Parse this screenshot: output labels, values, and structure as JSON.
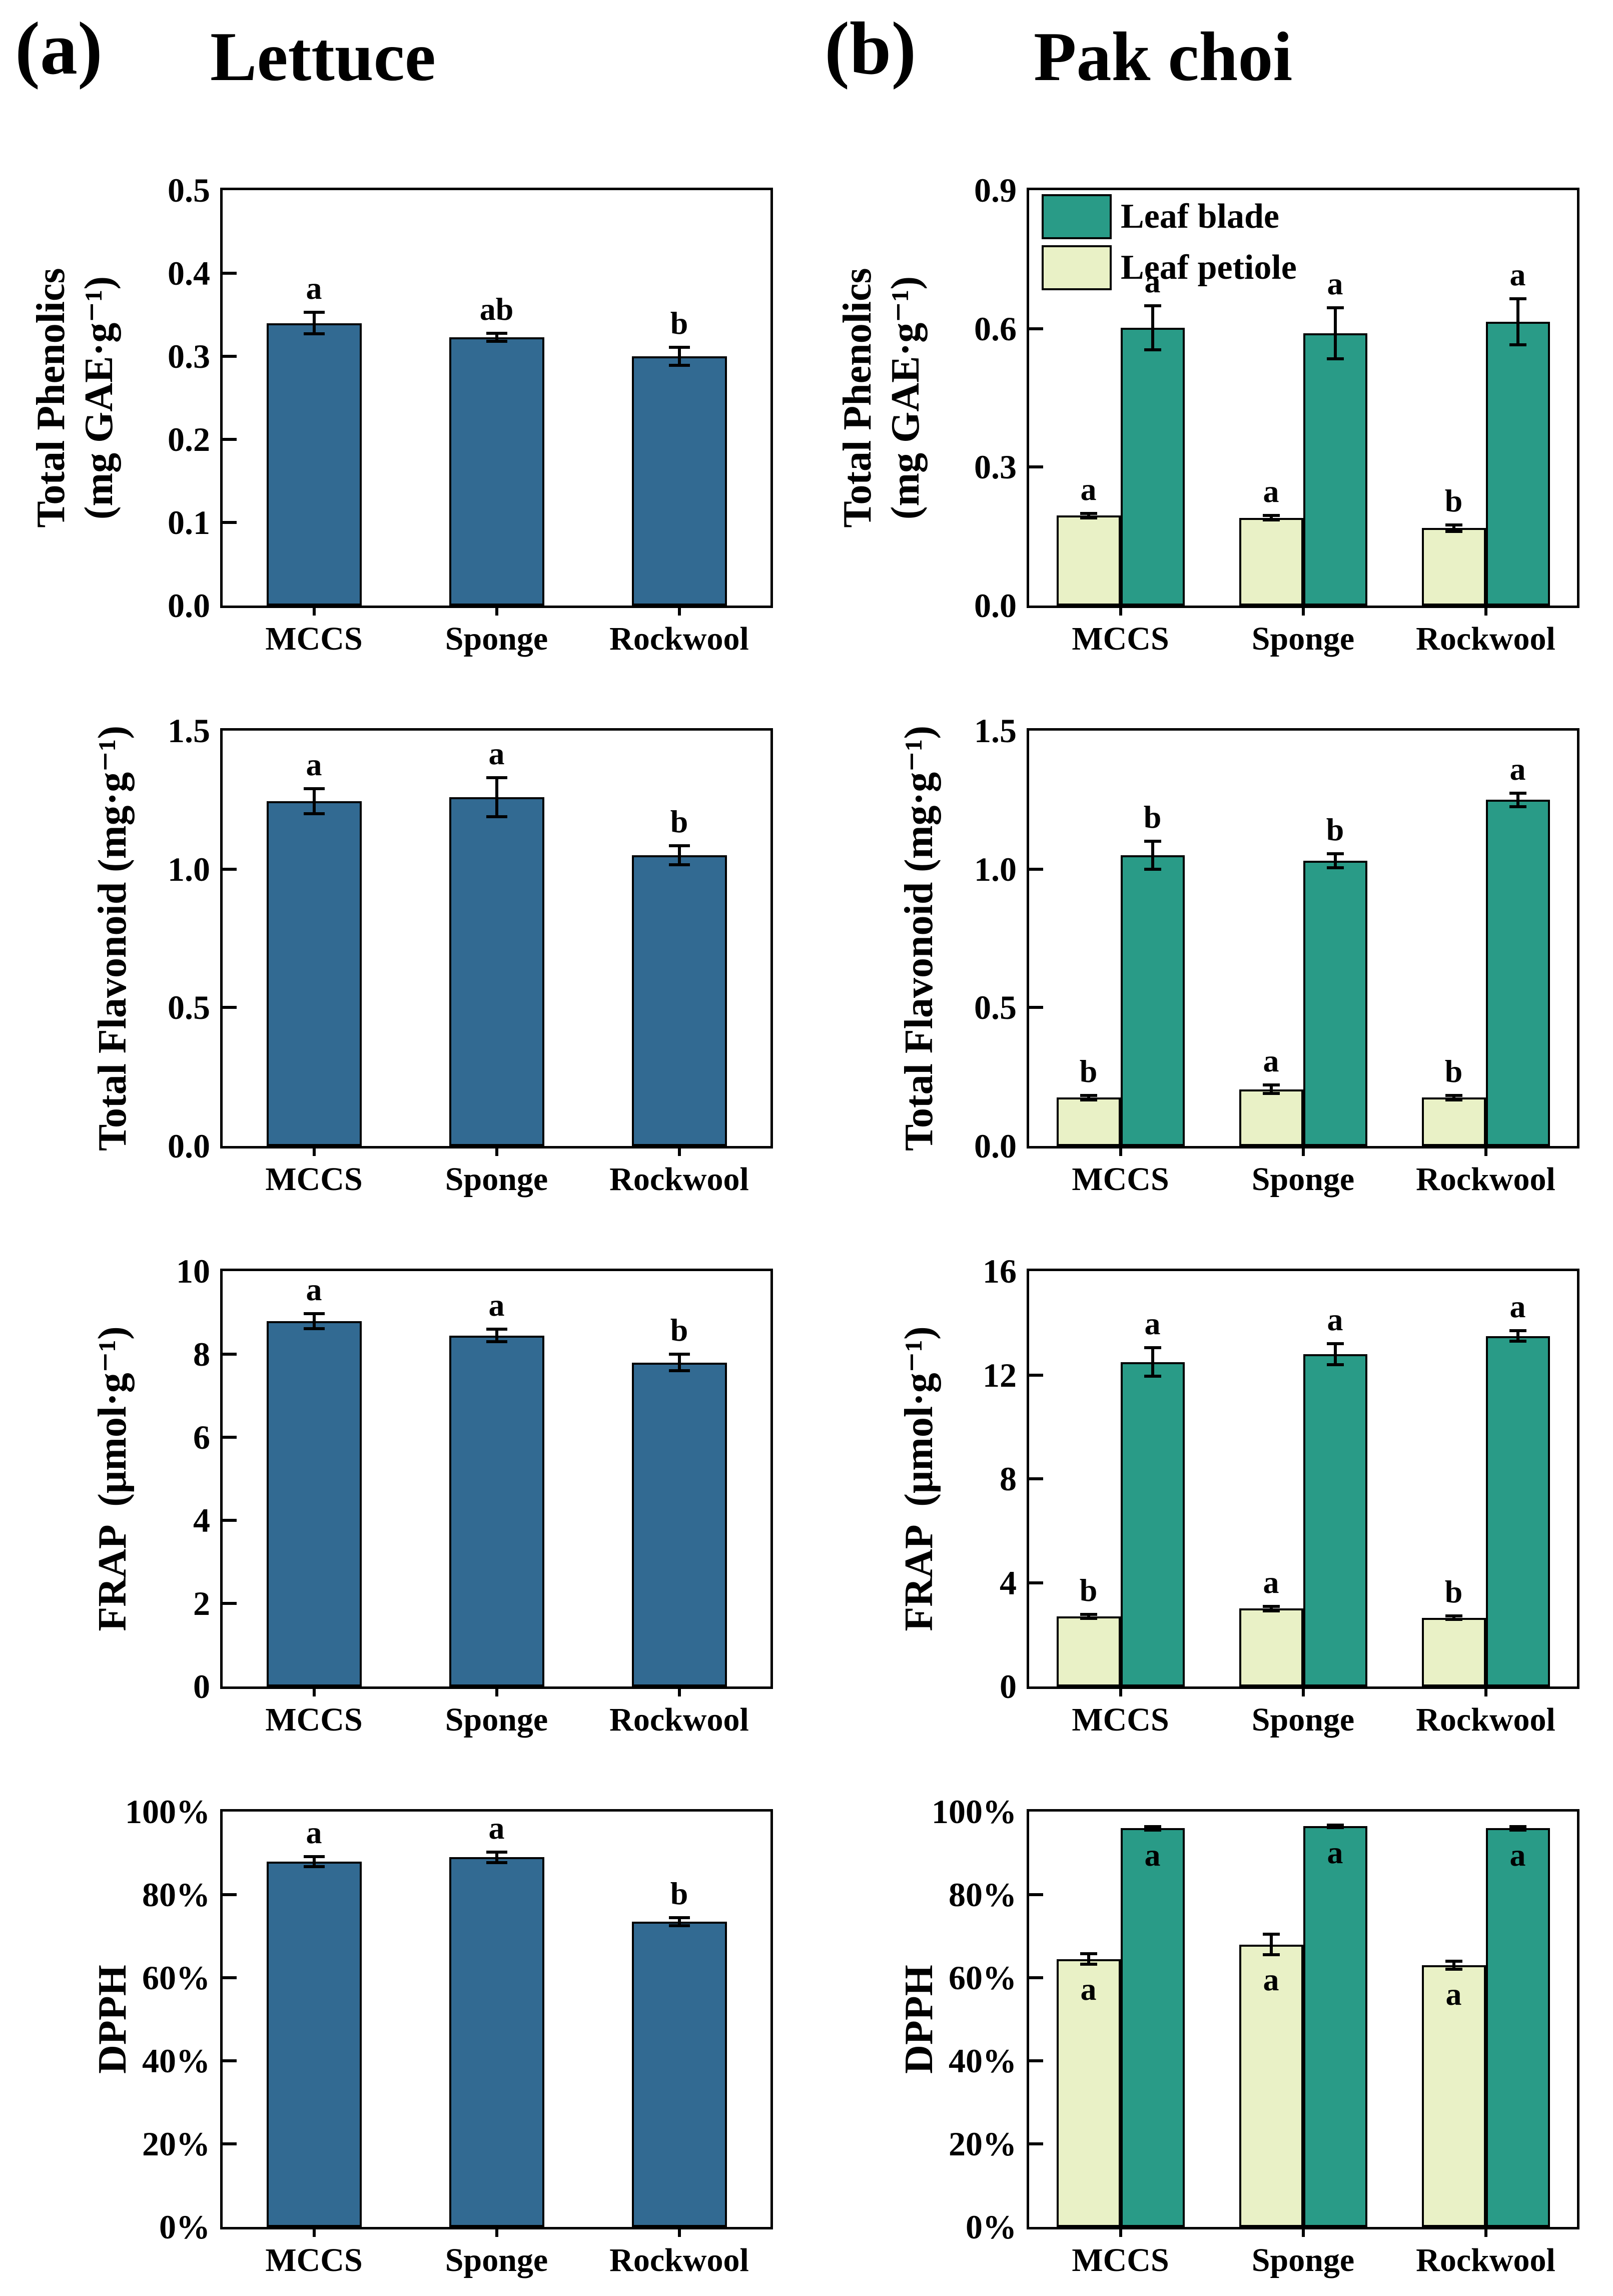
{
  "panels": {
    "a": {
      "label": "(a)",
      "title": "Lettuce"
    },
    "b": {
      "label": "(b)",
      "title": "Pak choi"
    }
  },
  "legend": {
    "position": "top-left-inside",
    "items": [
      {
        "name": "Leaf blade",
        "color": "#299B87"
      },
      {
        "name": "Leaf petiole",
        "color": "#E9F1C6"
      }
    ]
  },
  "colors": {
    "lettuce_bar": "#326A92",
    "leaf_blade": "#299B87",
    "leaf_petiole": "#E9F1C6",
    "axis": "#000000",
    "background": "#FFFFFF"
  },
  "chart_data": [
    {
      "id": "lettuce-total-phenolics",
      "panel": "a",
      "type": "bar",
      "ylabel_lines": [
        "Total Phenolics",
        "(mg GAE·g⁻¹)"
      ],
      "ylim": [
        0,
        0.5
      ],
      "grid": false,
      "legend": false,
      "letters_inside": false,
      "yticks": [
        {
          "v": 0.0,
          "label": "0.0"
        },
        {
          "v": 0.1,
          "label": "0.1"
        },
        {
          "v": 0.2,
          "label": "0.2"
        },
        {
          "v": 0.3,
          "label": "0.3"
        },
        {
          "v": 0.4,
          "label": "0.4"
        },
        {
          "v": 0.5,
          "label": "0.5"
        }
      ],
      "categories": [
        "MCCS",
        "Sponge",
        "Rockwool"
      ],
      "series": [
        {
          "name": "Lettuce",
          "color": "#326A92",
          "values": [
            0.34,
            0.323,
            0.3
          ],
          "errors": [
            0.013,
            0.005,
            0.011
          ],
          "letters": [
            "a",
            "ab",
            "b"
          ]
        }
      ]
    },
    {
      "id": "pakchoi-total-phenolics",
      "panel": "b",
      "type": "bar",
      "ylabel_lines": [
        "Total Phenolics",
        "(mg GAE·g⁻¹)"
      ],
      "ylim": [
        0,
        0.9
      ],
      "grid": false,
      "legend": true,
      "letters_inside": false,
      "yticks": [
        {
          "v": 0.0,
          "label": "0.0"
        },
        {
          "v": 0.3,
          "label": "0.3"
        },
        {
          "v": 0.6,
          "label": "0.6"
        },
        {
          "v": 0.9,
          "label": "0.9"
        }
      ],
      "categories": [
        "MCCS",
        "Sponge",
        "Rockwool"
      ],
      "series": [
        {
          "name": "Leaf petiole",
          "color": "#E9F1C6",
          "values": [
            0.195,
            0.19,
            0.168
          ],
          "errors": [
            0.005,
            0.005,
            0.007
          ],
          "letters": [
            "a",
            "a",
            "b"
          ]
        },
        {
          "name": "Leaf blade",
          "color": "#299B87",
          "values": [
            0.602,
            0.59,
            0.615
          ],
          "errors": [
            0.048,
            0.055,
            0.05
          ],
          "letters": [
            "a",
            "a",
            "a"
          ]
        }
      ]
    },
    {
      "id": "lettuce-total-flavonoid",
      "panel": "a",
      "type": "bar",
      "ylabel_lines": [
        "Total Flavonoid (mg·g⁻¹)"
      ],
      "ylim": [
        0,
        1.5
      ],
      "grid": false,
      "legend": false,
      "letters_inside": false,
      "yticks": [
        {
          "v": 0.0,
          "label": "0.0"
        },
        {
          "v": 0.5,
          "label": "0.5"
        },
        {
          "v": 1.0,
          "label": "1.0"
        },
        {
          "v": 1.5,
          "label": "1.5"
        }
      ],
      "categories": [
        "MCCS",
        "Sponge",
        "Rockwool"
      ],
      "series": [
        {
          "name": "Lettuce",
          "color": "#326A92",
          "values": [
            1.245,
            1.26,
            1.05
          ],
          "errors": [
            0.045,
            0.07,
            0.035
          ],
          "letters": [
            "a",
            "a",
            "b"
          ]
        }
      ]
    },
    {
      "id": "pakchoi-total-flavonoid",
      "panel": "b",
      "type": "bar",
      "ylabel_lines": [
        "Total Flavonoid (mg·g⁻¹)"
      ],
      "ylim": [
        0,
        1.5
      ],
      "grid": false,
      "legend": false,
      "letters_inside": false,
      "yticks": [
        {
          "v": 0.0,
          "label": "0.0"
        },
        {
          "v": 0.5,
          "label": "0.5"
        },
        {
          "v": 1.0,
          "label": "1.0"
        },
        {
          "v": 1.5,
          "label": "1.5"
        }
      ],
      "categories": [
        "MCCS",
        "Sponge",
        "Rockwool"
      ],
      "series": [
        {
          "name": "Leaf petiole",
          "color": "#E9F1C6",
          "values": [
            0.175,
            0.205,
            0.175
          ],
          "errors": [
            0.008,
            0.015,
            0.008
          ],
          "letters": [
            "b",
            "a",
            "b"
          ]
        },
        {
          "name": "Leaf blade",
          "color": "#299B87",
          "values": [
            1.05,
            1.03,
            1.25
          ],
          "errors": [
            0.05,
            0.025,
            0.025
          ],
          "letters": [
            "b",
            "b",
            "a"
          ]
        }
      ]
    },
    {
      "id": "lettuce-frap",
      "panel": "a",
      "type": "bar",
      "ylabel_lines": [
        "FRAP  (μmol·g⁻¹)"
      ],
      "ylim": [
        0,
        10
      ],
      "grid": false,
      "legend": false,
      "letters_inside": false,
      "yticks": [
        {
          "v": 0,
          "label": "0"
        },
        {
          "v": 2,
          "label": "2"
        },
        {
          "v": 4,
          "label": "4"
        },
        {
          "v": 6,
          "label": "6"
        },
        {
          "v": 8,
          "label": "8"
        },
        {
          "v": 10,
          "label": "10"
        }
      ],
      "categories": [
        "MCCS",
        "Sponge",
        "Rockwool"
      ],
      "series": [
        {
          "name": "Lettuce",
          "color": "#326A92",
          "values": [
            8.8,
            8.45,
            7.8
          ],
          "errors": [
            0.18,
            0.15,
            0.2
          ],
          "letters": [
            "a",
            "a",
            "b"
          ]
        }
      ]
    },
    {
      "id": "pakchoi-frap",
      "panel": "b",
      "type": "bar",
      "ylabel_lines": [
        "FRAP  (μmol·g⁻¹)"
      ],
      "ylim": [
        0,
        16
      ],
      "grid": false,
      "legend": false,
      "letters_inside": false,
      "yticks": [
        {
          "v": 0,
          "label": "0"
        },
        {
          "v": 4,
          "label": "4"
        },
        {
          "v": 8,
          "label": "8"
        },
        {
          "v": 12,
          "label": "12"
        },
        {
          "v": 16,
          "label": "16"
        }
      ],
      "categories": [
        "MCCS",
        "Sponge",
        "Rockwool"
      ],
      "series": [
        {
          "name": "Leaf petiole",
          "color": "#E9F1C6",
          "values": [
            2.7,
            3.0,
            2.65
          ],
          "errors": [
            0.08,
            0.08,
            0.06
          ],
          "letters": [
            "b",
            "a",
            "b"
          ]
        },
        {
          "name": "Leaf blade",
          "color": "#299B87",
          "values": [
            12.5,
            12.8,
            13.5
          ],
          "errors": [
            0.55,
            0.4,
            0.2
          ],
          "letters": [
            "a",
            "a",
            "a"
          ]
        }
      ]
    },
    {
      "id": "lettuce-dpph",
      "panel": "a",
      "type": "bar",
      "ylabel_lines": [
        "DPPH"
      ],
      "ylim": [
        0,
        100
      ],
      "grid": false,
      "legend": false,
      "letters_inside": false,
      "yticks": [
        {
          "v": 0,
          "label": "0%"
        },
        {
          "v": 20,
          "label": "20%"
        },
        {
          "v": 40,
          "label": "40%"
        },
        {
          "v": 60,
          "label": "60%"
        },
        {
          "v": 80,
          "label": "80%"
        },
        {
          "v": 100,
          "label": "100%"
        }
      ],
      "categories": [
        "MCCS",
        "Sponge",
        "Rockwool"
      ],
      "series": [
        {
          "name": "Lettuce",
          "color": "#326A92",
          "values": [
            88,
            89,
            73.5
          ],
          "errors": [
            1.2,
            1.3,
            1.0
          ],
          "letters": [
            "a",
            "a",
            "b"
          ]
        }
      ]
    },
    {
      "id": "pakchoi-dpph",
      "panel": "b",
      "type": "bar",
      "ylabel_lines": [
        "DPPH"
      ],
      "ylim": [
        0,
        100
      ],
      "grid": false,
      "legend": false,
      "letters_inside": true,
      "yticks": [
        {
          "v": 0,
          "label": "0%"
        },
        {
          "v": 20,
          "label": "20%"
        },
        {
          "v": 40,
          "label": "40%"
        },
        {
          "v": 60,
          "label": "60%"
        },
        {
          "v": 80,
          "label": "80%"
        },
        {
          "v": 100,
          "label": "100%"
        }
      ],
      "categories": [
        "MCCS",
        "Sponge",
        "Rockwool"
      ],
      "series": [
        {
          "name": "Leaf petiole",
          "color": "#E9F1C6",
          "values": [
            64.5,
            68,
            63
          ],
          "errors": [
            1.3,
            2.5,
            1.0
          ],
          "letters": [
            "a",
            "a",
            "a"
          ]
        },
        {
          "name": "Leaf blade",
          "color": "#299B87",
          "values": [
            96,
            96.5,
            96
          ],
          "errors": [
            0.4,
            0.3,
            0.4
          ],
          "letters": [
            "a",
            "a",
            "a"
          ]
        }
      ]
    }
  ]
}
